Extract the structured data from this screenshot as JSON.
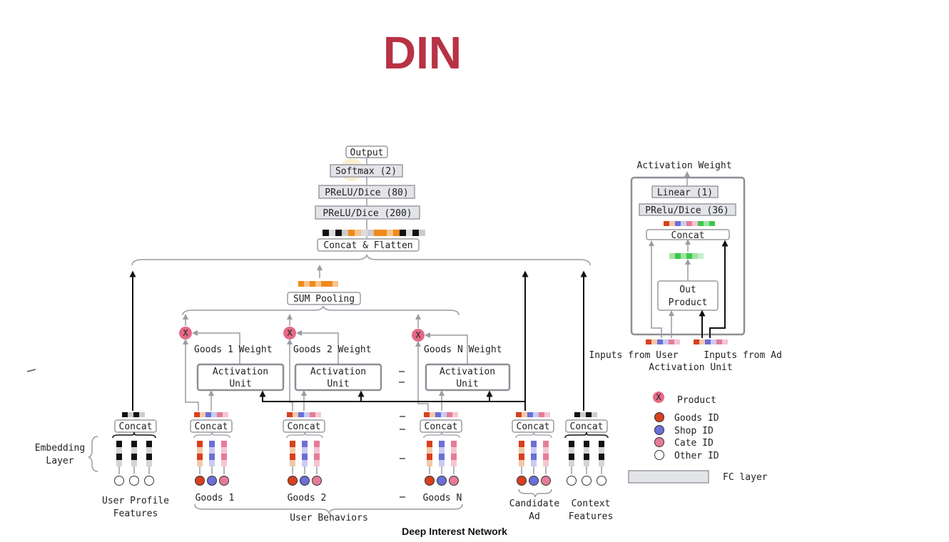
{
  "title": "DIN",
  "caption": "Deep Interest Network",
  "mlp": {
    "output": "Output",
    "softmax": "Softmax (2)",
    "prelu80": "PReLU/Dice (80)",
    "prelu200": "PReLU/Dice (200)",
    "concat_flatten": "Concat & Flatten"
  },
  "sum_pooling": "SUM Pooling",
  "goods": {
    "w1": "Goods 1 Weight",
    "w2": "Goods 2 Weight",
    "wn": "Goods N Weight",
    "g1": "Goods 1",
    "g2": "Goods 2",
    "gn": "Goods N"
  },
  "activation_unit": {
    "line1": "Activation",
    "line2": "Unit"
  },
  "concat": "Concat",
  "product_symbol": "X",
  "bottom": {
    "user_profile_1": "User Profile",
    "user_profile_2": "Features",
    "user_behaviors": "User Behaviors",
    "candidate_1": "Candidate",
    "candidate_2": "Ad",
    "context_1": "Context",
    "context_2": "Features",
    "embedding_1": "Embedding",
    "embedding_2": "Layer"
  },
  "activation_panel": {
    "title": "Activation Weight",
    "linear": "Linear (1)",
    "prelu": "PRelu/Dice (36)",
    "concat": "Concat",
    "out_product_1": "Out",
    "out_product_2": "Product",
    "inputs_user": "Inputs from User",
    "inputs_ad": "Inputs from Ad",
    "caption": "Activation Unit"
  },
  "legend": {
    "product": "Product",
    "goods_id": "Goods ID",
    "shop_id": "Shop ID",
    "cate_id": "Cate ID",
    "other_id": "Other ID",
    "fc_layer": "FC layer"
  },
  "colors": {
    "title": "#b83245",
    "goods_id": "#d7401f",
    "shop_id": "#6b6fd6",
    "cate_id": "#e67c97",
    "product": "#e46a86",
    "orange": "#f08a1e",
    "green": "#3cc84b",
    "fc_fill": "#e3e4e8"
  }
}
